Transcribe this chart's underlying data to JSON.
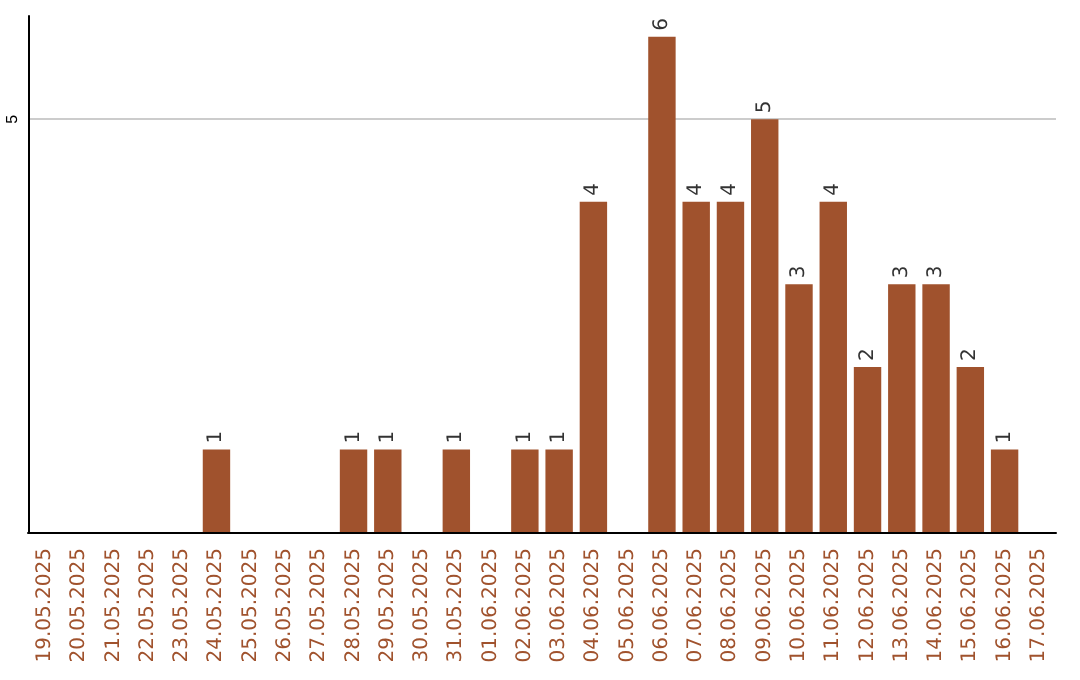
{
  "chart_data": {
    "type": "bar",
    "categories": [
      "19.05.2025",
      "20.05.2025",
      "21.05.2025",
      "22.05.2025",
      "23.05.2025",
      "24.05.2025",
      "25.05.2025",
      "26.05.2025",
      "27.05.2025",
      "28.05.2025",
      "29.05.2025",
      "30.05.2025",
      "31.05.2025",
      "01.06.2025",
      "02.06.2025",
      "03.06.2025",
      "04.06.2025",
      "05.06.2025",
      "06.06.2025",
      "07.06.2025",
      "08.06.2025",
      "09.06.2025",
      "10.06.2025",
      "11.06.2025",
      "12.06.2025",
      "13.06.2025",
      "14.06.2025",
      "15.06.2025",
      "16.06.2025",
      "17.06.2025"
    ],
    "values": [
      0,
      0,
      0,
      0,
      0,
      1,
      0,
      0,
      0,
      1,
      1,
      0,
      1,
      0,
      1,
      1,
      4,
      0,
      6,
      4,
      4,
      5,
      3,
      4,
      2,
      3,
      3,
      2,
      1,
      0
    ],
    "value_labels": [
      null,
      null,
      null,
      null,
      null,
      "1",
      null,
      null,
      null,
      "1",
      "1",
      null,
      "1",
      null,
      "1",
      "1",
      "4",
      null,
      "6",
      "4",
      "4",
      "5",
      "3",
      "4",
      "2",
      "3",
      "3",
      "2",
      "1",
      null
    ],
    "color": "#a0522d",
    "ylim": [
      0,
      6.25
    ],
    "yticks": [
      5
    ],
    "grid": "y"
  }
}
